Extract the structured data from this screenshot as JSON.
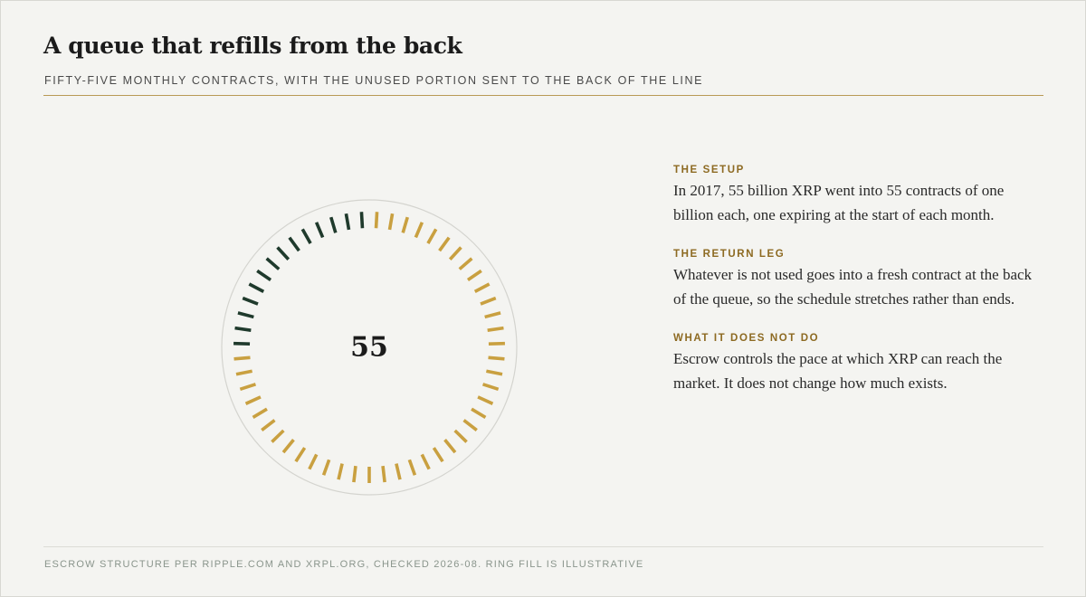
{
  "header": {
    "title": "A queue that refills from the back",
    "subtitle": "FIFTY-FIVE MONTHLY CONTRACTS, WITH THE UNUSED PORTION SENT TO THE BACK OF THE LINE"
  },
  "ring": {
    "center_label": "55",
    "total_contracts": 55,
    "dark_contracts": 14,
    "colors": {
      "dark": "#1f3a2c",
      "gold": "#c9a040",
      "outline": "#d4d4cf"
    }
  },
  "sections": [
    {
      "label": "THE SETUP",
      "body": "In 2017, 55 billion XRP went into 55 contracts of one billion each, one expiring at the start of each month."
    },
    {
      "label": "THE RETURN LEG",
      "body": "Whatever is not used goes into a fresh contract at the back of the queue, so the schedule stretches rather than ends."
    },
    {
      "label": "WHAT IT DOES NOT DO",
      "body": "Escrow controls the pace at which XRP can reach the market. It does not change how much exists."
    }
  ],
  "footer": {
    "note": "ESCROW STRUCTURE PER RIPPLE.COM AND XRPL.ORG, CHECKED 2026-08. RING FILL IS ILLUSTRATIVE"
  }
}
